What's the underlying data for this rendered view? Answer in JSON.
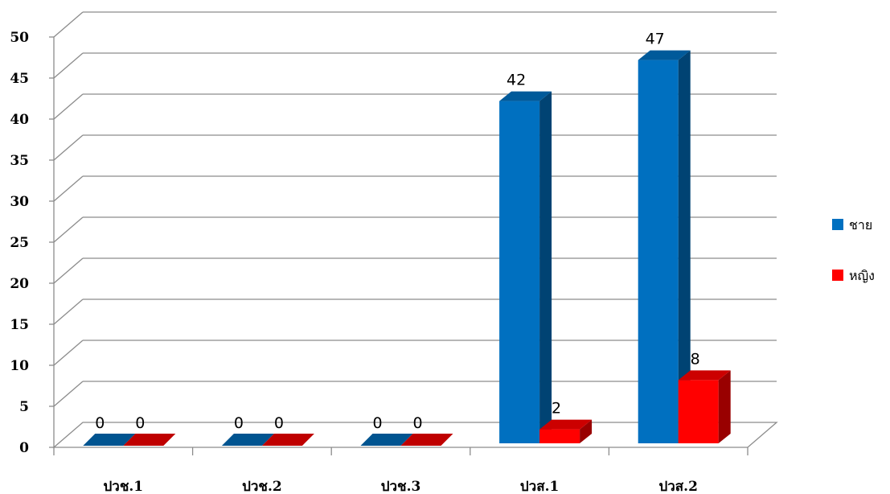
{
  "chart_data": {
    "type": "bar",
    "categories": [
      "ปวช.1",
      "ปวช.2",
      "ปวช.3",
      "ปวส.1",
      "ปวส.2"
    ],
    "series": [
      {
        "name": "ชาย",
        "values": [
          0,
          0,
          0,
          42,
          47
        ],
        "color": "#0070C0"
      },
      {
        "name": "หญิง",
        "values": [
          0,
          0,
          0,
          2,
          8
        ],
        "color": "#FF0000"
      }
    ],
    "yticks": [
      "0",
      "5",
      "10",
      "15",
      "20",
      "25",
      "30",
      "35",
      "40",
      "45",
      "50"
    ],
    "ylim": [
      0,
      50
    ],
    "grid": true,
    "legend_position": "right",
    "style": "3d-clustered-column"
  }
}
